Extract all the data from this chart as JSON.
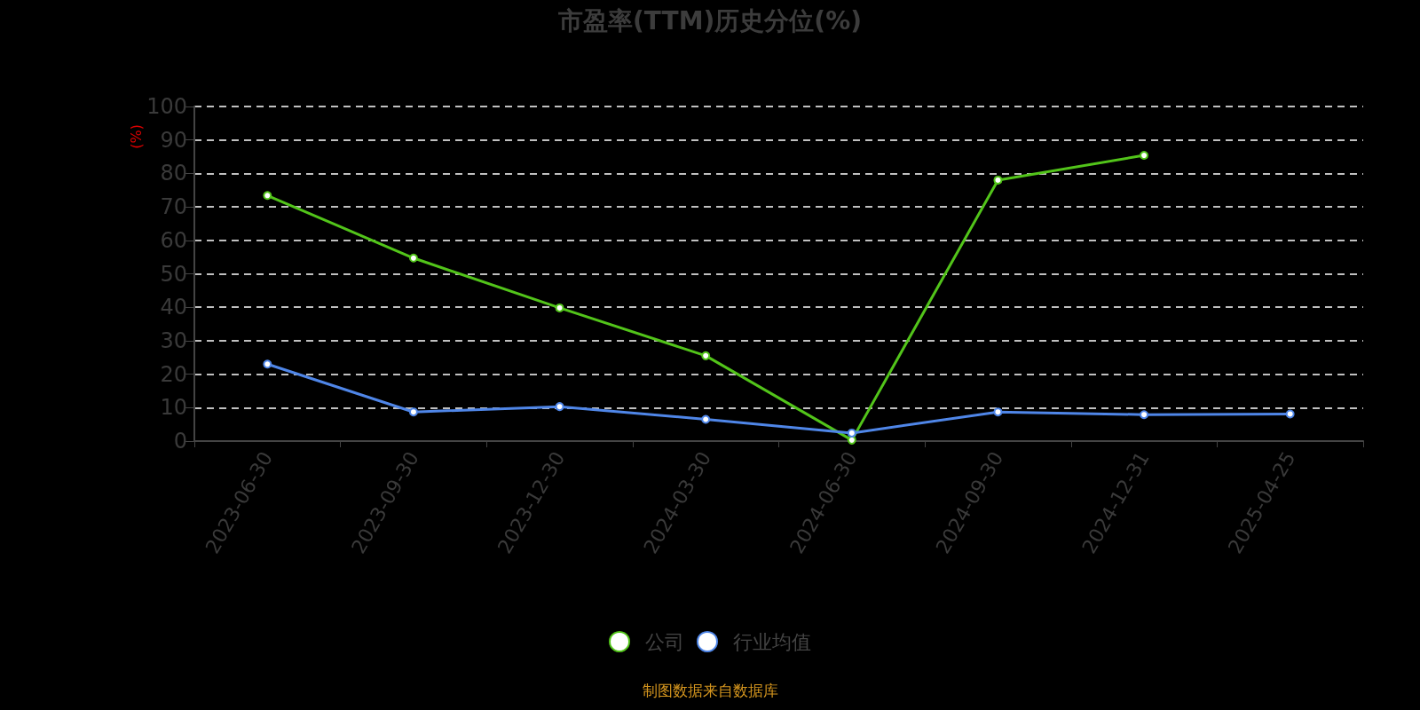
{
  "chart_data": {
    "type": "line",
    "title": "市盈率(TTM)历史分位(%)",
    "ylabel": "(%)",
    "categories": [
      "2023-06-30",
      "2023-09-30",
      "2023-12-30",
      "2024-03-30",
      "2024-06-30",
      "2024-09-30",
      "2024-12-31",
      "2025-04-25"
    ],
    "series": [
      {
        "name": "公司",
        "color": "#52c41a",
        "values": [
          73.4,
          54.7,
          39.8,
          25.5,
          0.3,
          78,
          85.4,
          null
        ]
      },
      {
        "name": "行业均值",
        "color": "#4f86e8",
        "values": [
          23,
          8.7,
          10.3,
          6.5,
          2.4,
          8.7,
          7.9,
          8.1
        ]
      }
    ],
    "ylim": [
      0,
      100
    ],
    "yticks": [
      0,
      10,
      20,
      30,
      40,
      50,
      60,
      70,
      80,
      90,
      100
    ],
    "grid": "y",
    "legend": "bottom",
    "marker": "circle",
    "line_style": "solid",
    "annotations": [
      "制图数据来自数据库"
    ]
  }
}
